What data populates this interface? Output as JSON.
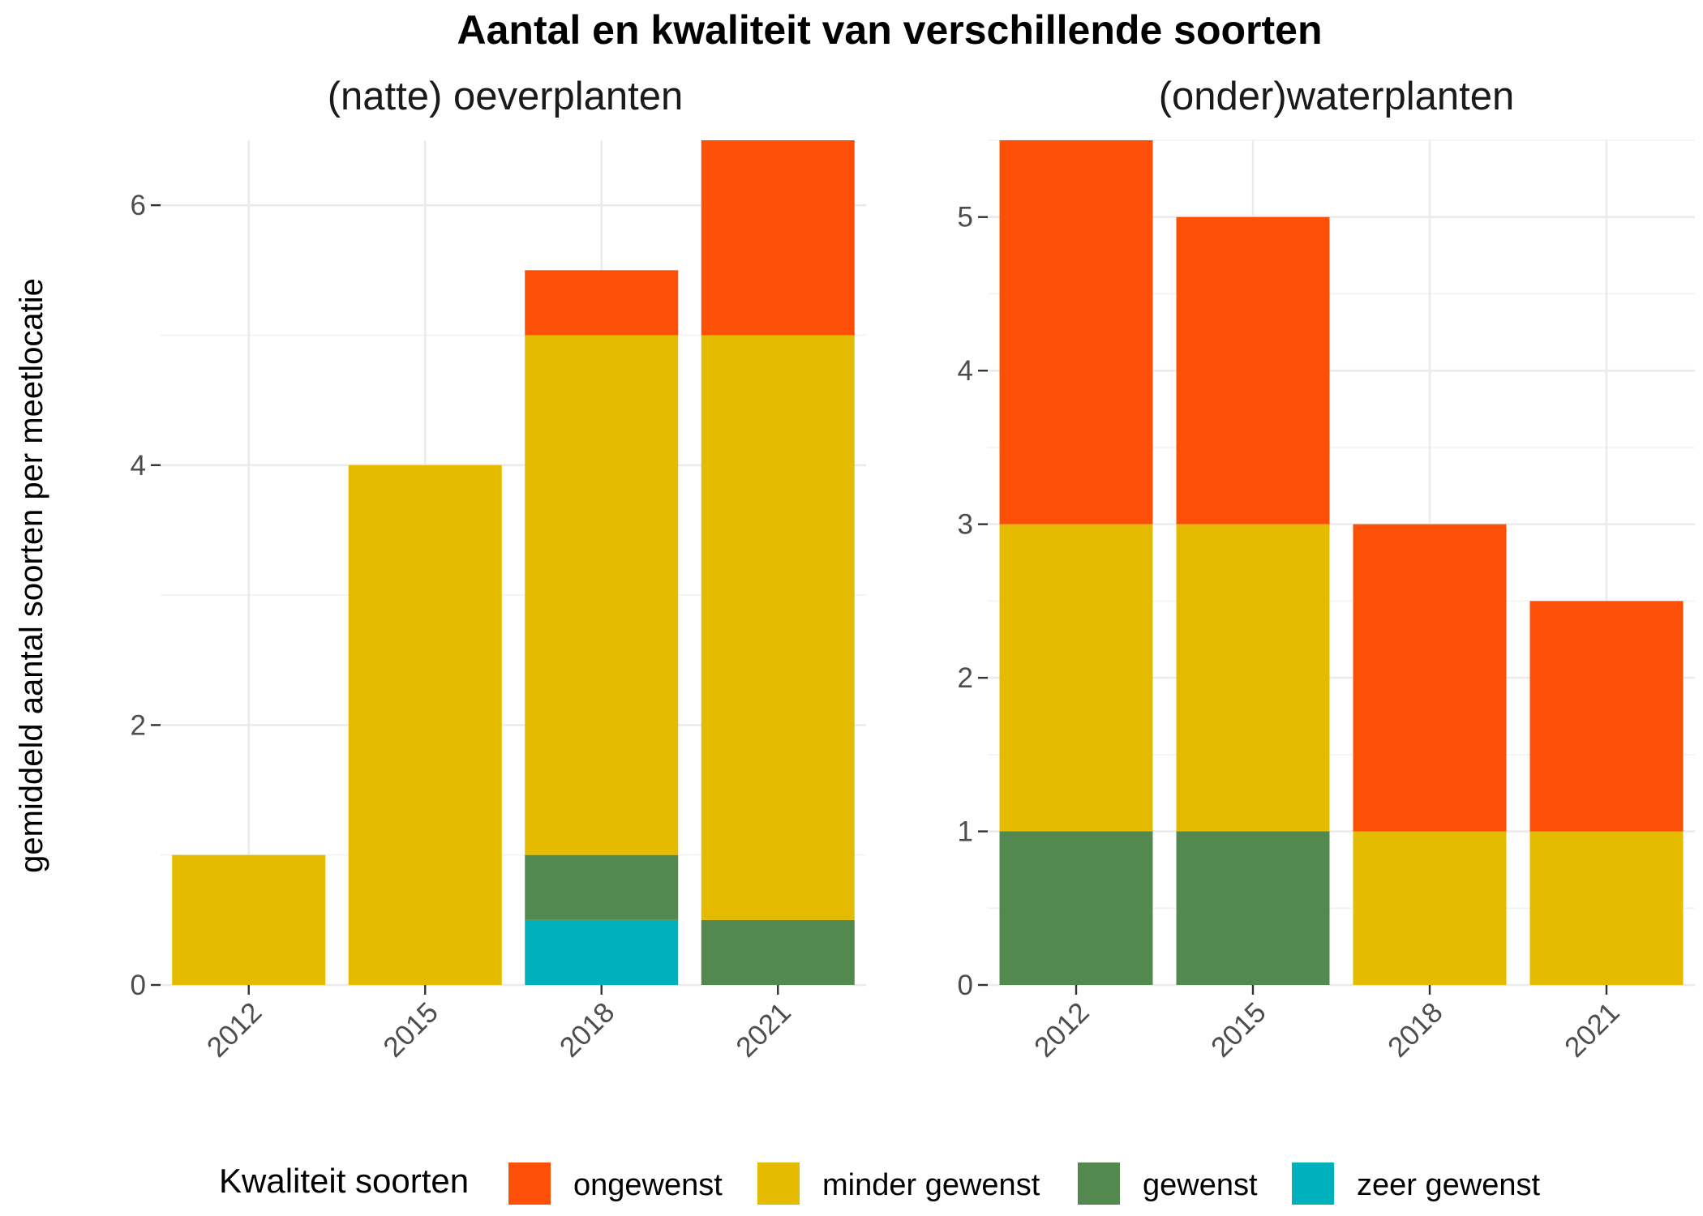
{
  "chart_data": {
    "type": "bar",
    "stacked": true,
    "title": "Aantal en kwaliteit van verschillende soorten",
    "ylabel": "gemiddeld aantal soorten per meetlocatie",
    "categories": [
      "2012",
      "2015",
      "2018",
      "2021"
    ],
    "legend": {
      "title": "Kwaliteit soorten",
      "placement": "bottom",
      "entries": [
        {
          "name": "ongewenst",
          "color": "#fc5008"
        },
        {
          "name": "minder gewenst",
          "color": "#e5bb00"
        },
        {
          "name": "gewenst",
          "color": "#53894f"
        },
        {
          "name": "zeer gewenst",
          "color": "#00b0bd"
        }
      ]
    },
    "panels": [
      {
        "name": "(natte) oeverplanten",
        "ylim": [
          0,
          6.5
        ],
        "yticks": [
          0,
          2,
          4,
          6
        ],
        "series": [
          {
            "name": "zeer gewenst",
            "values": [
              0,
              0,
              0.5,
              0
            ]
          },
          {
            "name": "gewenst",
            "values": [
              0,
              0,
              0.5,
              0.5
            ]
          },
          {
            "name": "minder gewenst",
            "values": [
              1,
              4,
              4,
              4.5
            ]
          },
          {
            "name": "ongewenst",
            "values": [
              0,
              0,
              0.5,
              1.5
            ]
          }
        ]
      },
      {
        "name": "(onder)waterplanten",
        "ylim": [
          0,
          5.5
        ],
        "yticks": [
          0,
          1,
          2,
          3,
          4,
          5
        ],
        "series": [
          {
            "name": "zeer gewenst",
            "values": [
              0,
              0,
              0,
              0
            ]
          },
          {
            "name": "gewenst",
            "values": [
              1,
              1,
              0,
              0
            ]
          },
          {
            "name": "minder gewenst",
            "values": [
              2,
              2,
              1,
              1
            ]
          },
          {
            "name": "ongewenst",
            "values": [
              2.5,
              2,
              2,
              1.5
            ]
          }
        ]
      }
    ]
  }
}
